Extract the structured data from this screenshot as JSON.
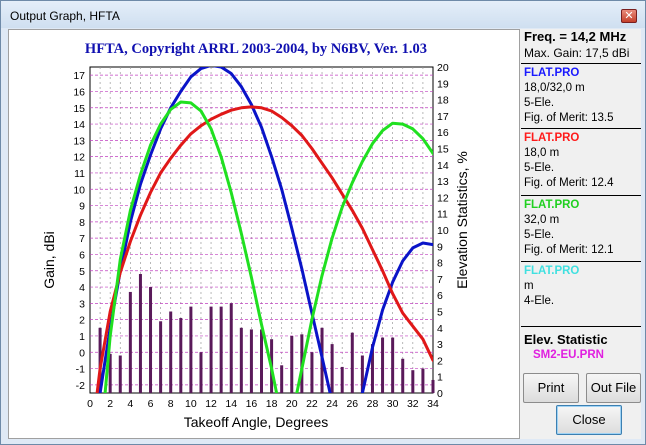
{
  "window": {
    "title": "Output Graph, HFTA",
    "close_glyph": "✕"
  },
  "chart_data": {
    "type": "line",
    "title": "HFTA, Copyright ARRL 2003-2004, by N6BV, Ver. 1.03",
    "xlabel": "Takeoff Angle, Degrees",
    "ylabel": "Gain, dBi",
    "y2label": "Elevation Statistics, %",
    "xlim": [
      0,
      34
    ],
    "ylim": [
      -2.5,
      17.5
    ],
    "y2lim": [
      0,
      20
    ],
    "x_ticks": [
      0,
      1,
      2,
      3,
      4,
      5,
      6,
      7,
      8,
      9,
      10,
      11,
      12,
      13,
      14,
      15,
      16,
      17,
      18,
      19,
      20,
      21,
      22,
      23,
      24,
      25,
      26,
      27,
      28,
      29,
      30,
      31,
      32,
      33,
      34
    ],
    "y_ticks": [
      -2,
      -1,
      0,
      1,
      2,
      3,
      4,
      5,
      6,
      7,
      8,
      9,
      10,
      11,
      12,
      13,
      14,
      15,
      16,
      17
    ],
    "y2_ticks": [
      0,
      1,
      2,
      3,
      4,
      5,
      6,
      7,
      8,
      9,
      10,
      11,
      12,
      13,
      14,
      15,
      16,
      17,
      18,
      19,
      20
    ],
    "grid": true,
    "series": [
      {
        "color": "#0a14c8",
        "segments": [
          [
            [
              1.0,
              -2.5
            ],
            [
              2,
              1.5
            ],
            [
              3,
              5.0
            ],
            [
              4,
              8.0
            ],
            [
              5,
              10.3
            ],
            [
              6,
              12.1
            ],
            [
              7,
              13.7
            ],
            [
              8,
              15.0
            ],
            [
              9,
              16.0
            ],
            [
              10,
              16.9
            ],
            [
              11,
              17.4
            ],
            [
              12,
              17.6
            ],
            [
              13,
              17.5
            ],
            [
              14,
              17.1
            ],
            [
              15,
              16.3
            ],
            [
              16,
              15.2
            ],
            [
              17,
              13.8
            ],
            [
              18,
              12.0
            ],
            [
              19,
              10.0
            ],
            [
              20,
              7.6
            ],
            [
              21,
              5.1
            ],
            [
              22,
              2.4
            ],
            [
              23,
              -0.3
            ],
            [
              23.8,
              -2.5
            ]
          ],
          [
            [
              27.0,
              -2.5
            ],
            [
              28,
              0.3
            ],
            [
              29,
              2.6
            ],
            [
              30,
              4.3
            ],
            [
              31,
              5.6
            ],
            [
              32,
              6.4
            ],
            [
              33,
              6.7
            ],
            [
              34,
              6.6
            ]
          ]
        ]
      },
      {
        "color": "#e01818",
        "segments": [
          [
            [
              0.7,
              -2.5
            ],
            [
              1,
              -1.0
            ],
            [
              2,
              2.5
            ],
            [
              3,
              4.9
            ],
            [
              4,
              6.8
            ],
            [
              5,
              8.4
            ],
            [
              6,
              9.8
            ],
            [
              7,
              11.0
            ],
            [
              8,
              11.9
            ],
            [
              9,
              12.7
            ],
            [
              10,
              13.4
            ],
            [
              11,
              13.9
            ],
            [
              12,
              14.3
            ],
            [
              13,
              14.6
            ],
            [
              14,
              14.85
            ],
            [
              15,
              15.0
            ],
            [
              16,
              15.05
            ],
            [
              17,
              15.0
            ],
            [
              18,
              14.8
            ],
            [
              19,
              14.4
            ],
            [
              20,
              13.9
            ],
            [
              21,
              13.3
            ],
            [
              22,
              12.5
            ],
            [
              23,
              11.6
            ],
            [
              24,
              10.7
            ],
            [
              25,
              9.7
            ],
            [
              26,
              8.7
            ],
            [
              27,
              7.6
            ],
            [
              28,
              6.3
            ],
            [
              29,
              5.0
            ],
            [
              30,
              3.6
            ],
            [
              31,
              2.4
            ],
            [
              32,
              1.6
            ],
            [
              33,
              0.8
            ],
            [
              34,
              -0.5
            ]
          ]
        ]
      },
      {
        "color": "#20e020",
        "segments": [
          [
            [
              1.5,
              -2.5
            ],
            [
              2,
              1.0
            ],
            [
              3,
              5.7
            ],
            [
              4,
              8.7
            ],
            [
              5,
              10.9
            ],
            [
              6,
              12.7
            ],
            [
              7,
              14.0
            ],
            [
              8,
              14.9
            ],
            [
              9,
              15.35
            ],
            [
              10,
              15.3
            ],
            [
              11,
              14.8
            ],
            [
              12,
              13.7
            ],
            [
              13,
              12.0
            ],
            [
              14,
              9.8
            ],
            [
              15,
              7.3
            ],
            [
              16,
              4.6
            ],
            [
              17,
              1.7
            ],
            [
              18,
              -1.0
            ],
            [
              18.5,
              -2.5
            ]
          ],
          [
            [
              20.5,
              -2.5
            ],
            [
              21,
              -1.0
            ],
            [
              22,
              2.0
            ],
            [
              23,
              4.7
            ],
            [
              24,
              7.0
            ],
            [
              25,
              8.9
            ],
            [
              26,
              10.4
            ],
            [
              27,
              11.7
            ],
            [
              28,
              12.8
            ],
            [
              29,
              13.6
            ],
            [
              30,
              14.05
            ],
            [
              31,
              14.0
            ],
            [
              32,
              13.7
            ],
            [
              33,
              13.1
            ],
            [
              34,
              12.2
            ]
          ]
        ]
      }
    ],
    "bars": {
      "color": "#5a1a5a",
      "x": [
        1,
        2,
        3,
        4,
        5,
        6,
        7,
        8,
        9,
        10,
        11,
        12,
        13,
        14,
        15,
        16,
        17,
        18,
        19,
        20,
        21,
        22,
        23,
        24,
        25,
        26,
        27,
        28,
        29,
        30,
        31,
        32,
        33,
        34
      ],
      "values": [
        4.0,
        2.4,
        2.3,
        6.2,
        7.3,
        6.5,
        4.4,
        5.0,
        4.6,
        5.3,
        2.5,
        5.3,
        5.3,
        5.5,
        4.0,
        3.9,
        3.9,
        3.3,
        1.7,
        3.5,
        3.6,
        2.5,
        4.0,
        3.0,
        1.6,
        3.7,
        2.3,
        3.0,
        3.4,
        3.4,
        2.1,
        1.4,
        1.5,
        0.8
      ]
    }
  },
  "side_panel": {
    "freq": "Freq. = 14,2 MHz",
    "max_gain": "Max. Gain: 17,5 dBi",
    "entries": [
      {
        "file": "FLAT.PRO",
        "color": "#1a1aff",
        "height": "18,0/32,0 m",
        "elements": "5-Ele.",
        "merit_label": "Fig. of Merit:",
        "merit_value": "13.5"
      },
      {
        "file": "FLAT.PRO",
        "color": "#ff1a1a",
        "height": "18,0 m",
        "elements": "5-Ele.",
        "merit_label": "Fig. of Merit:",
        "merit_value": "12.4"
      },
      {
        "file": "FLAT.PRO",
        "color": "#20d020",
        "height": "32,0 m",
        "elements": "5-Ele.",
        "merit_label": "Fig. of Merit:",
        "merit_value": "12.1"
      },
      {
        "file": "FLAT.PRO",
        "color": "#40e0e0",
        "height": " m",
        "elements": "4-Ele."
      }
    ],
    "elev_title": "Elev. Statistic",
    "elev_file": "SM2-EU.PRN"
  },
  "buttons": {
    "print": "Print",
    "out_file": "Out File",
    "close": "Close"
  }
}
